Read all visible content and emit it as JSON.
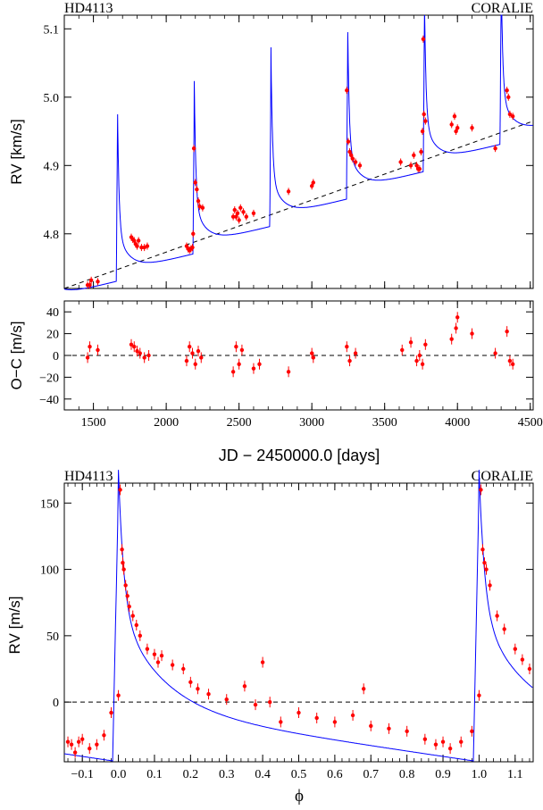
{
  "chart_data": [
    {
      "type": "scatter",
      "title_left": "HD4113",
      "title_right": "CORALIE",
      "xlabel": "",
      "ylabel": "RV [km/s]",
      "xlim": [
        1300,
        4520
      ],
      "ylim": [
        4.72,
        5.12
      ],
      "xticks": [
        1500,
        2000,
        2500,
        3000,
        3500,
        4000,
        4500
      ],
      "yticks": [
        4.8,
        4.9,
        5.0,
        5.1
      ],
      "ytick_labels": [
        "4.8",
        "4.9",
        "5.0",
        "5.1"
      ],
      "series": [
        {
          "kind": "points",
          "color": "#ff0000",
          "x": [
            1460,
            1475,
            1485,
            1530,
            1760,
            1770,
            1780,
            1790,
            1800,
            1810,
            1830,
            1850,
            1870,
            2140,
            2150,
            2160,
            2170,
            2180,
            2185,
            2190,
            2200,
            2210,
            2220,
            2230,
            2250,
            2460,
            2470,
            2480,
            2490,
            2500,
            2510,
            2530,
            2550,
            2600,
            2840,
            3000,
            3010,
            3240,
            3250,
            3260,
            3270,
            3280,
            3300,
            3330,
            3610,
            3680,
            3700,
            3720,
            3730,
            3740,
            3750,
            3760,
            3765,
            3770,
            3780,
            3960,
            3980,
            3990,
            4000,
            4100,
            4260,
            4340,
            4350,
            4360,
            4380
          ],
          "y": [
            4.725,
            4.725,
            4.732,
            4.73,
            4.795,
            4.792,
            4.79,
            4.785,
            4.782,
            4.79,
            4.78,
            4.78,
            4.782,
            4.782,
            4.778,
            4.776,
            4.778,
            4.78,
            4.8,
            4.925,
            4.875,
            4.865,
            4.848,
            4.84,
            4.838,
            4.825,
            4.835,
            4.825,
            4.83,
            4.82,
            4.838,
            4.832,
            4.825,
            4.83,
            4.862,
            4.87,
            4.875,
            5.01,
            4.935,
            4.92,
            4.915,
            4.91,
            4.905,
            4.9,
            4.905,
            4.9,
            4.915,
            4.9,
            4.895,
            4.895,
            4.92,
            4.95,
            5.085,
            4.975,
            4.965,
            4.96,
            4.972,
            4.95,
            4.955,
            4.955,
            4.925,
            5.01,
            5.0,
            4.975,
            4.972
          ]
        },
        {
          "kind": "model_curve",
          "color": "#0000ff"
        },
        {
          "kind": "trend_line",
          "color": "#000000",
          "x": [
            1300,
            4520
          ],
          "y": [
            4.72,
            4.965
          ]
        }
      ]
    },
    {
      "type": "scatter",
      "title": "",
      "xlabel": "JD − 2450000.0 [days]",
      "ylabel": "O−C [m/s]",
      "xlim": [
        1300,
        4520
      ],
      "ylim": [
        -50,
        50
      ],
      "xticks": [
        1500,
        2000,
        2500,
        3000,
        3500,
        4000,
        4500
      ],
      "xtick_labels": [
        "1500",
        "2000",
        "2500",
        "3000",
        "3500",
        "4000",
        "4500"
      ],
      "yticks": [
        -40,
        -20,
        0,
        20,
        40
      ],
      "ytick_labels": [
        "−40",
        "−20",
        "0",
        "20",
        "40"
      ],
      "series": [
        {
          "kind": "points",
          "color": "#ff0000",
          "x": [
            1460,
            1475,
            1530,
            1760,
            1780,
            1800,
            1820,
            1850,
            1880,
            2140,
            2160,
            2180,
            2200,
            2220,
            2240,
            2460,
            2480,
            2500,
            2520,
            2600,
            2640,
            2840,
            3000,
            3010,
            3240,
            3260,
            3300,
            3620,
            3680,
            3720,
            3740,
            3760,
            3780,
            3960,
            3990,
            4000,
            4100,
            4260,
            4340,
            4360,
            4380
          ],
          "y": [
            -2,
            8,
            5,
            10,
            8,
            4,
            2,
            -2,
            0,
            -5,
            8,
            2,
            -8,
            4,
            -2,
            -15,
            8,
            -8,
            5,
            -12,
            -8,
            -15,
            2,
            -2,
            8,
            -5,
            2,
            5,
            12,
            -5,
            0,
            -8,
            10,
            15,
            25,
            35,
            20,
            2,
            22,
            -5,
            -8
          ]
        },
        {
          "kind": "zero_line",
          "color": "#000000",
          "y": 0
        }
      ]
    },
    {
      "type": "scatter",
      "title_left": "HD4113",
      "title_right": "CORALIE",
      "xlabel": "ϕ",
      "ylabel": "RV [m/s]",
      "xlim": [
        -0.15,
        1.15
      ],
      "ylim": [
        -45,
        165
      ],
      "xticks": [
        -0.1,
        0.0,
        0.1,
        0.2,
        0.3,
        0.4,
        0.5,
        0.6,
        0.7,
        0.8,
        0.9,
        1.0,
        1.1
      ],
      "xtick_labels": [
        "−0.1",
        "0.0",
        "0.1",
        "0.2",
        "0.3",
        "0.4",
        "0.5",
        "0.6",
        "0.7",
        "0.8",
        "0.9",
        "1.0",
        "1.1"
      ],
      "yticks": [
        0,
        50,
        100,
        150
      ],
      "ytick_labels": [
        "0",
        "50",
        "100",
        "150"
      ],
      "series": [
        {
          "kind": "points",
          "color": "#ff0000",
          "x": [
            -0.14,
            -0.13,
            -0.12,
            -0.11,
            -0.1,
            -0.08,
            -0.06,
            -0.04,
            -0.02,
            0.0,
            0.005,
            0.01,
            0.012,
            0.015,
            0.02,
            0.025,
            0.03,
            0.04,
            0.05,
            0.06,
            0.08,
            0.1,
            0.11,
            0.12,
            0.15,
            0.18,
            0.2,
            0.22,
            0.25,
            0.3,
            0.35,
            0.38,
            0.4,
            0.42,
            0.45,
            0.5,
            0.55,
            0.6,
            0.65,
            0.68,
            0.7,
            0.75,
            0.8,
            0.85,
            0.88,
            0.9,
            0.92,
            0.95,
            0.98,
            1.0,
            1.005,
            1.01,
            1.015,
            1.02,
            1.03,
            1.05,
            1.07,
            1.1,
            1.12,
            1.14
          ],
          "y": [
            -30,
            -32,
            -38,
            -30,
            -28,
            -35,
            -32,
            -25,
            -8,
            5,
            160,
            115,
            105,
            100,
            88,
            80,
            72,
            65,
            58,
            50,
            40,
            36,
            30,
            35,
            28,
            25,
            15,
            10,
            6,
            2,
            12,
            -2,
            30,
            0,
            -15,
            -8,
            -12,
            -15,
            -10,
            10,
            -18,
            -20,
            -22,
            -28,
            -32,
            -30,
            -35,
            -30,
            -22,
            5,
            160,
            115,
            105,
            100,
            88,
            65,
            55,
            40,
            32,
            25
          ]
        },
        {
          "kind": "model_curve",
          "color": "#0000ff"
        },
        {
          "kind": "zero_line",
          "color": "#000000",
          "y": 0
        }
      ]
    }
  ]
}
